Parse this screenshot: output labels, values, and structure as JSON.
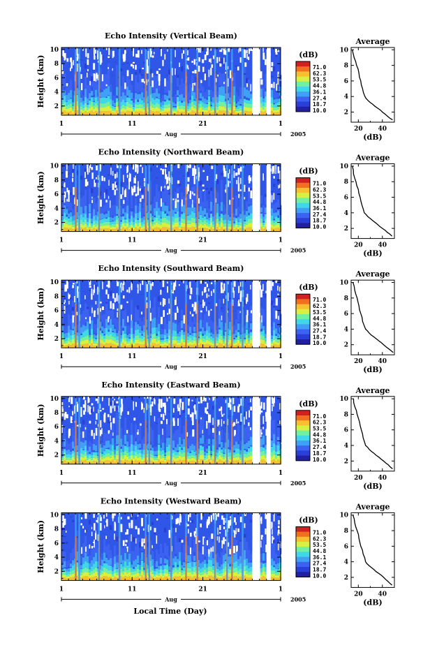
{
  "colors": {
    "scale": [
      "#2020a0",
      "#2a3fd8",
      "#3b62f0",
      "#3fa0f5",
      "#40d8e8",
      "#70f0a0",
      "#d8f040",
      "#f8c030",
      "#f07020",
      "#d02020"
    ],
    "line": "#000000",
    "gap": "#ffffff"
  },
  "figure": {
    "xlabel_bottom": "Local Time (Day)"
  },
  "chart_data": [
    {
      "type": "heatmap",
      "title": "Echo Intensity (Vertical Beam)",
      "ylabel": "Height (km)",
      "ylim": [
        0.7,
        10.3
      ],
      "yticks": [
        "2",
        "4",
        "6",
        "8",
        "10"
      ],
      "xticks": [
        "1",
        "11",
        "21",
        "1"
      ],
      "xlim_days": [
        1,
        32
      ],
      "month_label": "Aug",
      "year_label": "2005",
      "data_gaps_days": [
        [
          28.0,
          29.1
        ],
        [
          30.0,
          30.6
        ]
      ],
      "colorbar": {
        "unit": "(dB)",
        "levels": [
          "71.0",
          "62.3",
          "53.5",
          "44.8",
          "36.1",
          "27.4",
          "18.7",
          "10.0"
        ]
      },
      "profile": {
        "title": "Average",
        "xlabel": "(dB)",
        "xticks": [
          "20",
          "40"
        ],
        "xlim": [
          14,
          50
        ],
        "ylim": [
          0.7,
          10.3
        ],
        "yticks": [
          "2",
          "4",
          "6",
          "8",
          "10"
        ],
        "heights_km": [
          10.0,
          9.0,
          8.0,
          7.0,
          6.0,
          5.0,
          4.0,
          3.5,
          3.0,
          2.5,
          2.0,
          1.5,
          1.0
        ],
        "values_db": [
          15.0,
          16.5,
          18.5,
          20.5,
          22.0,
          23.5,
          25.5,
          28.0,
          32.0,
          36.0,
          40.0,
          44.0,
          48.5
        ]
      }
    },
    {
      "type": "heatmap",
      "title": "Echo Intensity (Northward Beam)",
      "ylabel": "Height (km)",
      "ylim": [
        0.7,
        10.3
      ],
      "yticks": [
        "2",
        "4",
        "6",
        "8",
        "10"
      ],
      "xticks": [
        "1",
        "11",
        "21",
        "1"
      ],
      "xlim_days": [
        1,
        32
      ],
      "month_label": "Aug",
      "year_label": "2005",
      "data_gaps_days": [
        [
          28.0,
          29.1
        ],
        [
          30.0,
          30.6
        ]
      ],
      "colorbar": {
        "unit": "(dB)",
        "levels": [
          "71.0",
          "62.3",
          "53.5",
          "44.8",
          "36.1",
          "27.4",
          "18.7",
          "10.0"
        ]
      },
      "profile": {
        "title": "Average",
        "xlabel": "(dB)",
        "xticks": [
          "20",
          "40"
        ],
        "xlim": [
          14,
          50
        ],
        "ylim": [
          0.7,
          10.3
        ],
        "yticks": [
          "2",
          "4",
          "6",
          "8",
          "10"
        ],
        "heights_km": [
          10.0,
          9.0,
          8.0,
          7.0,
          6.0,
          5.0,
          4.0,
          3.5,
          3.0,
          2.5,
          2.0,
          1.5,
          1.0
        ],
        "values_db": [
          15.0,
          16.0,
          18.0,
          20.0,
          21.5,
          23.0,
          25.0,
          28.0,
          32.0,
          36.0,
          40.0,
          44.0,
          48.0
        ]
      }
    },
    {
      "type": "heatmap",
      "title": "Echo Intensity (Southward Beam)",
      "ylabel": "Height (km)",
      "ylim": [
        0.7,
        10.3
      ],
      "yticks": [
        "2",
        "4",
        "6",
        "8",
        "10"
      ],
      "xticks": [
        "1",
        "11",
        "21",
        "1"
      ],
      "xlim_days": [
        1,
        32
      ],
      "month_label": "Aug",
      "year_label": "2005",
      "data_gaps_days": [
        [
          28.0,
          29.1
        ],
        [
          30.0,
          30.6
        ]
      ],
      "colorbar": {
        "unit": "(dB)",
        "levels": [
          "71.0",
          "62.3",
          "53.5",
          "44.8",
          "36.1",
          "27.4",
          "18.7",
          "10.0"
        ]
      },
      "profile": {
        "title": "Average",
        "xlabel": "(dB)",
        "xticks": [
          "20",
          "40"
        ],
        "xlim": [
          14,
          50
        ],
        "ylim": [
          0.7,
          10.3
        ],
        "yticks": [
          "2",
          "4",
          "6",
          "8",
          "10"
        ],
        "heights_km": [
          10.0,
          9.0,
          8.0,
          7.0,
          6.0,
          5.0,
          4.0,
          3.5,
          3.0,
          2.5,
          2.0,
          1.5,
          1.0
        ],
        "values_db": [
          15.5,
          17.0,
          19.0,
          20.5,
          22.0,
          23.5,
          26.0,
          29.0,
          33.0,
          37.0,
          41.0,
          45.0,
          49.0
        ]
      }
    },
    {
      "type": "heatmap",
      "title": "Echo Intensity (Eastward Beam)",
      "ylabel": "Height (km)",
      "ylim": [
        0.7,
        10.3
      ],
      "yticks": [
        "2",
        "4",
        "6",
        "8",
        "10"
      ],
      "xticks": [
        "1",
        "11",
        "21",
        "1"
      ],
      "xlim_days": [
        1,
        32
      ],
      "month_label": "Aug",
      "year_label": "2005",
      "data_gaps_days": [
        [
          28.0,
          29.1
        ],
        [
          30.0,
          30.6
        ]
      ],
      "colorbar": {
        "unit": "(dB)",
        "levels": [
          "71.0",
          "62.3",
          "53.5",
          "44.8",
          "36.1",
          "27.4",
          "18.7",
          "10.0"
        ]
      },
      "profile": {
        "title": "Average",
        "xlabel": "(dB)",
        "xticks": [
          "20",
          "40"
        ],
        "xlim": [
          14,
          50
        ],
        "ylim": [
          0.7,
          10.3
        ],
        "yticks": [
          "2",
          "4",
          "6",
          "8",
          "10"
        ],
        "heights_km": [
          10.0,
          9.0,
          8.0,
          7.0,
          6.0,
          5.0,
          4.0,
          3.5,
          3.0,
          2.5,
          2.0,
          1.5,
          1.0
        ],
        "values_db": [
          16.0,
          17.0,
          19.0,
          21.0,
          22.5,
          24.0,
          26.0,
          29.0,
          33.0,
          37.0,
          41.0,
          45.0,
          48.5
        ]
      }
    },
    {
      "type": "heatmap",
      "title": "Echo Intensity (Westward Beam)",
      "ylabel": "Height (km)",
      "ylim": [
        0.7,
        10.3
      ],
      "yticks": [
        "2",
        "4",
        "6",
        "8",
        "10"
      ],
      "xticks": [
        "1",
        "11",
        "21",
        "1"
      ],
      "xlim_days": [
        1,
        32
      ],
      "month_label": "Aug",
      "year_label": "2005",
      "data_gaps_days": [
        [
          28.0,
          29.1
        ],
        [
          30.0,
          30.6
        ]
      ],
      "colorbar": {
        "unit": "(dB)",
        "levels": [
          "71.0",
          "62.3",
          "53.5",
          "44.8",
          "36.1",
          "27.4",
          "18.7",
          "10.0"
        ]
      },
      "profile": {
        "title": "Average",
        "xlabel": "(dB)",
        "xticks": [
          "20",
          "40"
        ],
        "xlim": [
          14,
          50
        ],
        "ylim": [
          0.7,
          10.3
        ],
        "yticks": [
          "2",
          "4",
          "6",
          "8",
          "10"
        ],
        "heights_km": [
          10.0,
          9.0,
          8.0,
          7.0,
          6.0,
          5.0,
          4.0,
          3.5,
          3.0,
          2.5,
          2.0,
          1.5,
          1.0
        ],
        "values_db": [
          15.5,
          17.0,
          19.0,
          20.5,
          22.0,
          24.0,
          26.0,
          29.0,
          33.0,
          37.0,
          41.0,
          44.5,
          48.0
        ]
      }
    }
  ]
}
